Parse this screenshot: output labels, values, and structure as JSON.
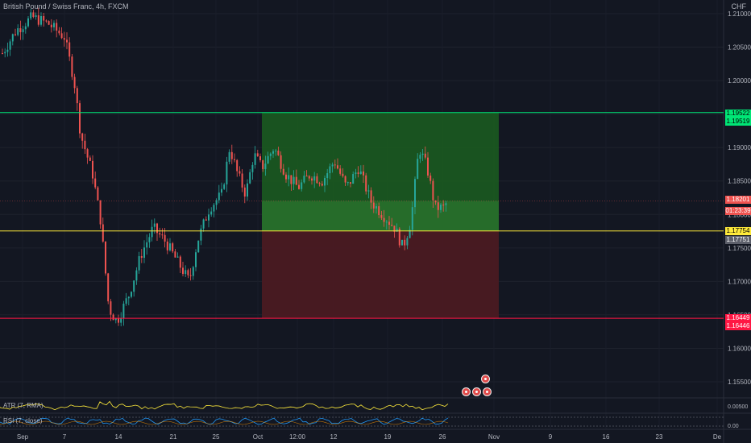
{
  "header": {
    "symbol": "British Pound / Swiss Franc, 4h, FXCM",
    "currency": "CHF"
  },
  "price_axis": {
    "ticks": [
      {
        "label": "1.21000",
        "value": 1.21
      },
      {
        "label": "1.20500",
        "value": 1.205
      },
      {
        "label": "1.20000",
        "value": 1.2
      },
      {
        "label": "1.19500",
        "value": 1.195
      },
      {
        "label": "1.19000",
        "value": 1.19
      },
      {
        "label": "1.18500",
        "value": 1.185
      },
      {
        "label": "1.18000",
        "value": 1.18
      },
      {
        "label": "1.17500",
        "value": 1.175
      },
      {
        "label": "1.17000",
        "value": 1.17
      },
      {
        "label": "1.16500",
        "value": 1.165
      },
      {
        "label": "1.16000",
        "value": 1.16
      },
      {
        "label": "1.15500",
        "value": 1.155
      }
    ]
  },
  "time_axis": {
    "labels": [
      "Sep",
      "7",
      "14",
      "21",
      "25",
      "Oct",
      "12:00",
      "12",
      "19",
      "26",
      "Nov",
      "9",
      "16",
      "23",
      "De"
    ]
  },
  "levels": {
    "target_upper": {
      "value": 1.19522,
      "color": "#00e676"
    },
    "entry": {
      "value": 1.17754,
      "color": "#ffeb3b"
    },
    "stop": {
      "value": 1.16449,
      "color": "#ff1744"
    },
    "current": {
      "value": 1.18201
    }
  },
  "price_tags": [
    {
      "label": "1.19522",
      "bg": "#00e676",
      "fg": "#000000"
    },
    {
      "label": "1.19519",
      "bg": "#00e676",
      "fg": "#000000"
    },
    {
      "label": "1.18201",
      "bg": "#ef5350",
      "fg": "#ffffff"
    },
    {
      "label": "01:23:39",
      "bg": "#ef5350",
      "fg": "#ffffff"
    },
    {
      "label": "1.17754",
      "bg": "#ffeb3b",
      "fg": "#000000"
    },
    {
      "label": "1.17751",
      "bg": "#5d606b",
      "fg": "#ffffff"
    },
    {
      "label": "1.16449",
      "bg": "#ff1744",
      "fg": "#ffffff"
    },
    {
      "label": "1.16446",
      "bg": "#ff1744",
      "fg": "#ffffff"
    }
  ],
  "indicators": {
    "atr": {
      "label": "ATR (7, RMA)",
      "color": "#ffeb3b",
      "tick": "0.00500"
    },
    "rsi": {
      "label": "RSI (7, close)",
      "color": "#2196f3",
      "tick": "0.00"
    }
  },
  "events": [
    {
      "name": "event-marker-1"
    },
    {
      "name": "event-marker-2"
    },
    {
      "name": "event-marker-3"
    },
    {
      "name": "event-marker-4"
    }
  ],
  "colors": {
    "bull": "#26a69a",
    "bear": "#ef5350",
    "profit_zone": "#1b5e20",
    "loss_zone": "#4a1a22"
  }
}
